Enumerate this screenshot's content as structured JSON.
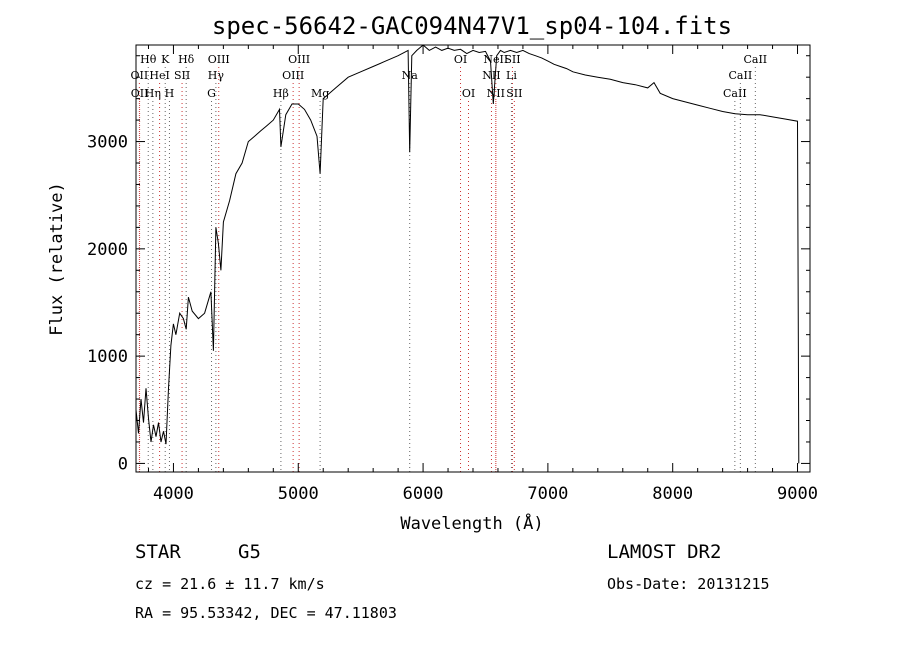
{
  "chart_data": {
    "type": "line",
    "title": "spec-56642-GAC094N47V1_sp04-104.fits",
    "xlabel": "Wavelength (Å)",
    "ylabel": "Flux (relative)",
    "xlim": [
      3700,
      9100
    ],
    "ylim": [
      -80,
      3900
    ],
    "xticks": [
      4000,
      5000,
      6000,
      7000,
      8000,
      9000
    ],
    "xtick_labels": [
      "4000",
      "5000",
      "6000",
      "7000",
      "8000",
      "9000"
    ],
    "yticks": [
      0,
      1000,
      2000,
      3000
    ],
    "ytick_labels": [
      "0",
      "1000",
      "2000",
      "3000"
    ],
    "grid": false,
    "legend": "none",
    "series": [
      {
        "x": [
          3700,
          3720,
          3740,
          3760,
          3780,
          3800,
          3820,
          3840,
          3860,
          3880,
          3900,
          3920,
          3940,
          3960,
          3980,
          4000,
          4020,
          4050,
          4080,
          4102,
          4120,
          4150,
          4200,
          4250,
          4300,
          4320,
          4340,
          4360,
          4380,
          4400,
          4450,
          4500,
          4550,
          4600,
          4650,
          4700,
          4750,
          4800,
          4850,
          4861,
          4900,
          4950,
          5000,
          5050,
          5100,
          5150,
          5175,
          5200,
          5250,
          5300,
          5400,
          5500,
          5600,
          5700,
          5800,
          5880,
          5893,
          5910,
          5950,
          6000,
          6050,
          6100,
          6150,
          6200,
          6250,
          6300,
          6350,
          6400,
          6450,
          6500,
          6540,
          6563,
          6590,
          6620,
          6650,
          6700,
          6750,
          6800,
          6850,
          6900,
          6950,
          7000,
          7050,
          7100,
          7150,
          7200,
          7300,
          7400,
          7500,
          7600,
          7700,
          7800,
          7850,
          7900,
          8000,
          8100,
          8200,
          8300,
          8400,
          8500,
          8600,
          8700,
          8800,
          8900,
          9000,
          9010
        ],
        "y": [
          500,
          280,
          600,
          380,
          700,
          420,
          200,
          360,
          250,
          380,
          200,
          300,
          180,
          700,
          1100,
          1300,
          1200,
          1400,
          1350,
          1250,
          1550,
          1420,
          1350,
          1400,
          1600,
          1050,
          2200,
          2050,
          1800,
          2250,
          2450,
          2700,
          2800,
          3000,
          3050,
          3100,
          3150,
          3200,
          3300,
          2950,
          3250,
          3350,
          3350,
          3300,
          3200,
          3050,
          2700,
          3400,
          3450,
          3500,
          3600,
          3650,
          3700,
          3750,
          3800,
          3850,
          2900,
          3800,
          3850,
          3900,
          3850,
          3880,
          3850,
          3870,
          3850,
          3860,
          3820,
          3850,
          3830,
          3840,
          3750,
          3350,
          3800,
          3850,
          3830,
          3850,
          3830,
          3850,
          3820,
          3800,
          3780,
          3750,
          3720,
          3700,
          3680,
          3650,
          3620,
          3600,
          3580,
          3550,
          3530,
          3500,
          3550,
          3450,
          3400,
          3370,
          3340,
          3310,
          3280,
          3260,
          3250,
          3250,
          3230,
          3210,
          3190,
          0
        ]
      }
    ],
    "line_markers": {
      "emission_color": "#cc3333",
      "absorption_color": "#666666",
      "lines": [
        {
          "label": "Hθ",
          "x": 3798,
          "row": 0,
          "kind": "absorption"
        },
        {
          "label": "K",
          "x": 3934,
          "row": 0,
          "kind": "absorption"
        },
        {
          "label": "Hδ",
          "x": 4102,
          "row": 0,
          "kind": "absorption"
        },
        {
          "label": "OIII",
          "x": 4363,
          "row": 0,
          "kind": "emission"
        },
        {
          "label": "OIII",
          "x": 5007,
          "row": 0,
          "kind": "emission"
        },
        {
          "label": "OI",
          "x": 6300,
          "row": 0,
          "kind": "emission"
        },
        {
          "label": "NeII",
          "x": 6583,
          "row": 0,
          "kind": "emission"
        },
        {
          "label": "SII",
          "x": 6716,
          "row": 0,
          "kind": "emission"
        },
        {
          "label": "CaII",
          "x": 8662,
          "row": 0,
          "kind": "absorption"
        },
        {
          "label": "OII",
          "x": 3727,
          "row": 1,
          "kind": "emission"
        },
        {
          "label": "HeI",
          "x": 3889,
          "row": 1,
          "kind": "emission"
        },
        {
          "label": "SII",
          "x": 4069,
          "row": 1,
          "kind": "emission"
        },
        {
          "label": "Hγ",
          "x": 4340,
          "row": 1,
          "kind": "absorption"
        },
        {
          "label": "OIII",
          "x": 4959,
          "row": 1,
          "kind": "emission"
        },
        {
          "label": "Na",
          "x": 5893,
          "row": 1,
          "kind": "absorption"
        },
        {
          "label": "NII",
          "x": 6548,
          "row": 1,
          "kind": "emission"
        },
        {
          "label": "Li",
          "x": 6708,
          "row": 1,
          "kind": "absorption"
        },
        {
          "label": "CaII",
          "x": 8542,
          "row": 1,
          "kind": "absorption"
        },
        {
          "label": "OII",
          "x": 3729,
          "row": 2,
          "kind": "emission"
        },
        {
          "label": "Hη",
          "x": 3835,
          "row": 2,
          "kind": "absorption"
        },
        {
          "label": "H",
          "x": 3968,
          "row": 2,
          "kind": "absorption"
        },
        {
          "label": "G",
          "x": 4305,
          "row": 2,
          "kind": "absorption"
        },
        {
          "label": "Hβ",
          "x": 4861,
          "row": 2,
          "kind": "absorption"
        },
        {
          "label": "Mg",
          "x": 5175,
          "row": 2,
          "kind": "absorption"
        },
        {
          "label": "OI",
          "x": 6364,
          "row": 2,
          "kind": "emission"
        },
        {
          "label": "NII",
          "x": 6583,
          "row": 2,
          "kind": "emission"
        },
        {
          "label": "SII",
          "x": 6731,
          "row": 2,
          "kind": "emission"
        },
        {
          "label": "CaII",
          "x": 8498,
          "row": 2,
          "kind": "absorption"
        }
      ]
    }
  },
  "info": {
    "class": "STAR",
    "subclass": "G5",
    "survey": "LAMOST DR2",
    "cz": "cz = 21.6 ± 11.7 km/s",
    "obs_date": "Obs-Date: 20131215",
    "coords": "RA =  95.53342, DEC =  47.11803"
  }
}
